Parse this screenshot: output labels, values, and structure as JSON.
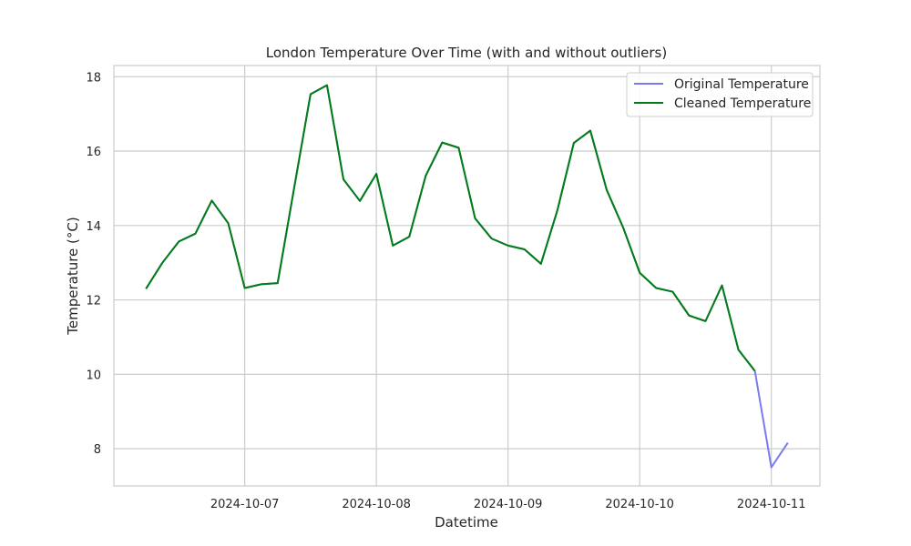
{
  "chart_data": {
    "type": "line",
    "title": "London Temperature Over Time (with and without outliers)",
    "xlabel": "Datetime",
    "ylabel": "Temperature (°C)",
    "x_tick_labels": [
      "2024-10-07",
      "2024-10-08",
      "2024-10-09",
      "2024-10-10",
      "2024-10-11"
    ],
    "y_ticks": [
      8,
      10,
      12,
      14,
      16,
      18
    ],
    "ylim": [
      7,
      18.3
    ],
    "grid": true,
    "legend_position": "top-right",
    "x": [
      "2024-10-06 06:00",
      "2024-10-06 09:00",
      "2024-10-06 12:00",
      "2024-10-06 15:00",
      "2024-10-06 18:00",
      "2024-10-06 21:00",
      "2024-10-07 00:00",
      "2024-10-07 03:00",
      "2024-10-07 06:00",
      "2024-10-07 09:00",
      "2024-10-07 12:00",
      "2024-10-07 15:00",
      "2024-10-07 18:00",
      "2024-10-07 21:00",
      "2024-10-08 00:00",
      "2024-10-08 03:00",
      "2024-10-08 06:00",
      "2024-10-08 09:00",
      "2024-10-08 12:00",
      "2024-10-08 15:00",
      "2024-10-08 18:00",
      "2024-10-08 21:00",
      "2024-10-09 00:00",
      "2024-10-09 03:00",
      "2024-10-09 06:00",
      "2024-10-09 09:00",
      "2024-10-09 12:00",
      "2024-10-09 15:00",
      "2024-10-09 18:00",
      "2024-10-09 21:00",
      "2024-10-10 00:00",
      "2024-10-10 03:00",
      "2024-10-10 06:00",
      "2024-10-10 09:00",
      "2024-10-10 12:00",
      "2024-10-10 15:00",
      "2024-10-10 18:00",
      "2024-10-10 21:00",
      "2024-10-11 00:00",
      "2024-10-11 03:00"
    ],
    "series": [
      {
        "name": "Original Temperature",
        "color": "#7b7bf0",
        "values": [
          12.3,
          13.0,
          13.57,
          13.78,
          14.67,
          14.06,
          12.32,
          12.42,
          12.45,
          15.0,
          17.53,
          17.77,
          15.24,
          14.66,
          15.39,
          13.46,
          13.7,
          15.34,
          16.23,
          16.09,
          14.19,
          13.65,
          13.46,
          13.36,
          12.97,
          14.41,
          16.22,
          16.55,
          14.95,
          13.94,
          12.73,
          12.32,
          12.22,
          11.58,
          11.43,
          12.39,
          10.66,
          10.09,
          7.5,
          8.16
        ]
      },
      {
        "name": "Cleaned Temperature",
        "color": "#007d13",
        "values": [
          12.3,
          13.0,
          13.57,
          13.78,
          14.67,
          14.06,
          12.32,
          12.42,
          12.45,
          15.0,
          17.53,
          17.77,
          15.24,
          14.66,
          15.39,
          13.46,
          13.7,
          15.34,
          16.23,
          16.09,
          14.19,
          13.65,
          13.46,
          13.36,
          12.97,
          14.41,
          16.22,
          16.55,
          14.95,
          13.94,
          12.73,
          12.32,
          12.22,
          11.58,
          11.43,
          12.39,
          10.66,
          10.09,
          null,
          null
        ]
      }
    ]
  }
}
